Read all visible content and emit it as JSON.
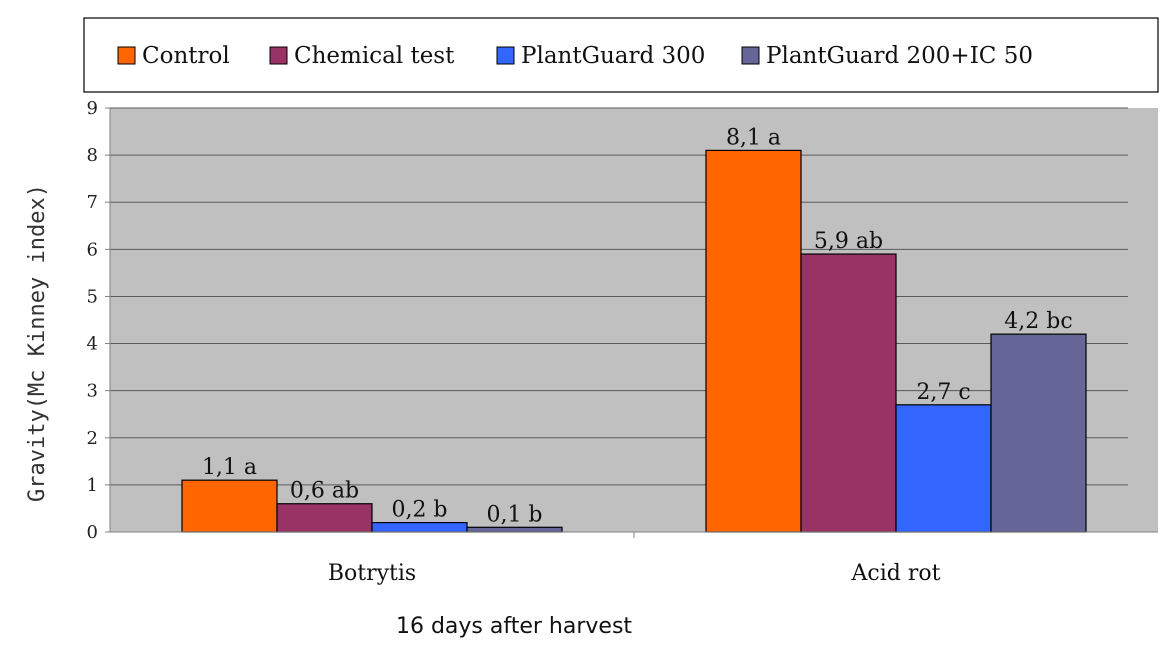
{
  "chart_data": {
    "type": "bar",
    "categories": [
      "Botrytis",
      "Acid rot"
    ],
    "series": [
      {
        "name": "Control",
        "color": "#ff6600",
        "values": [
          1.1,
          8.1
        ],
        "labels": [
          "1,1 a",
          "8,1 a"
        ]
      },
      {
        "name": "Chemical test",
        "color": "#993366",
        "values": [
          0.6,
          5.9
        ],
        "labels": [
          "0,6 ab",
          "5,9 ab"
        ]
      },
      {
        "name": "PlantGuard 300",
        "color": "#3366ff",
        "values": [
          0.2,
          2.7
        ],
        "labels": [
          "0,2 b",
          "2,7 c"
        ]
      },
      {
        "name": "PlantGuard 200+IC  50",
        "color": "#666699",
        "values": [
          0.1,
          4.2
        ],
        "labels": [
          "0,1 b",
          "4,2 bc"
        ]
      }
    ],
    "title": "",
    "xlabel": "16 days after harvest",
    "ylabel": "Gravity(Mc Kinney index)",
    "ylim": [
      0,
      9
    ],
    "yticks": [
      0,
      1,
      2,
      3,
      4,
      5,
      6,
      7,
      8,
      9
    ],
    "grid": true,
    "legend": "top"
  }
}
